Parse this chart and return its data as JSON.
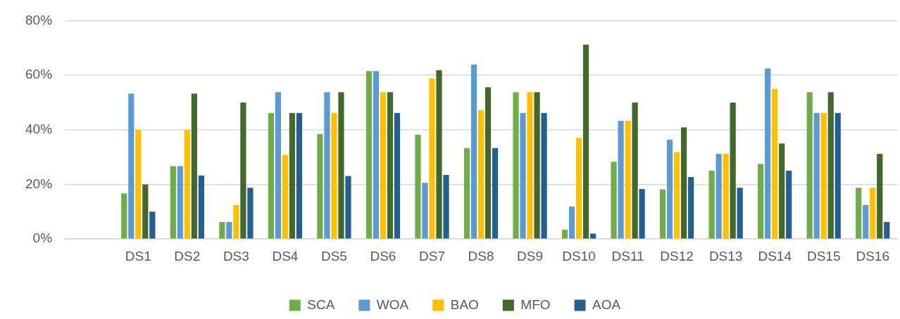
{
  "chart_data": {
    "type": "bar",
    "categories": [
      null,
      "DS1",
      "DS2",
      "DS3",
      "DS4",
      "DS5",
      "DS6",
      "DS7",
      "DS8",
      "DS9",
      "DS10",
      "DS11",
      "DS12",
      "DS13",
      "DS14",
      "DS15",
      "DS16"
    ],
    "series": [
      {
        "name": "SCA",
        "color": "#70ad47",
        "values": [
          null,
          16.7,
          26.7,
          6.2,
          46.2,
          38.5,
          61.5,
          38.2,
          33.3,
          53.8,
          3.4,
          28.3,
          18.2,
          25,
          27.5,
          53.8,
          18.8
        ]
      },
      {
        "name": "WOA",
        "color": "#5b9bd5",
        "values": [
          null,
          53.3,
          26.7,
          6.2,
          53.8,
          53.8,
          61.5,
          20.6,
          63.9,
          46.2,
          11.9,
          43.3,
          36.4,
          31.2,
          62.5,
          46.2,
          12.5
        ]
      },
      {
        "name": "BAO",
        "color": "#ffc000",
        "values": [
          null,
          40,
          40,
          12.5,
          30.8,
          46.2,
          53.8,
          58.8,
          47.2,
          53.8,
          37,
          43.3,
          31.8,
          31.2,
          55,
          46.2,
          18.8
        ]
      },
      {
        "name": "MFO",
        "color": "#43682b",
        "values": [
          null,
          20,
          53.3,
          50,
          46.2,
          53.8,
          53.8,
          61.8,
          55.6,
          53.8,
          71.2,
          50,
          40.9,
          50,
          35,
          53.8,
          31.2
        ]
      },
      {
        "name": "AOA",
        "color": "#255e91",
        "values": [
          null,
          10,
          23.3,
          18.8,
          46.2,
          23.1,
          46.2,
          23.5,
          33.3,
          46.2,
          2,
          18.3,
          22.7,
          18.8,
          25,
          46.2,
          6.2
        ]
      }
    ],
    "ylim": [
      0,
      80
    ],
    "yticks": [
      {
        "value": 0,
        "label": "0%"
      },
      {
        "value": 20,
        "label": "20%"
      },
      {
        "value": 40,
        "label": "40%"
      },
      {
        "value": 60,
        "label": "60%"
      },
      {
        "value": 80,
        "label": "80%"
      }
    ],
    "grid": "y",
    "legend": "bottom"
  }
}
